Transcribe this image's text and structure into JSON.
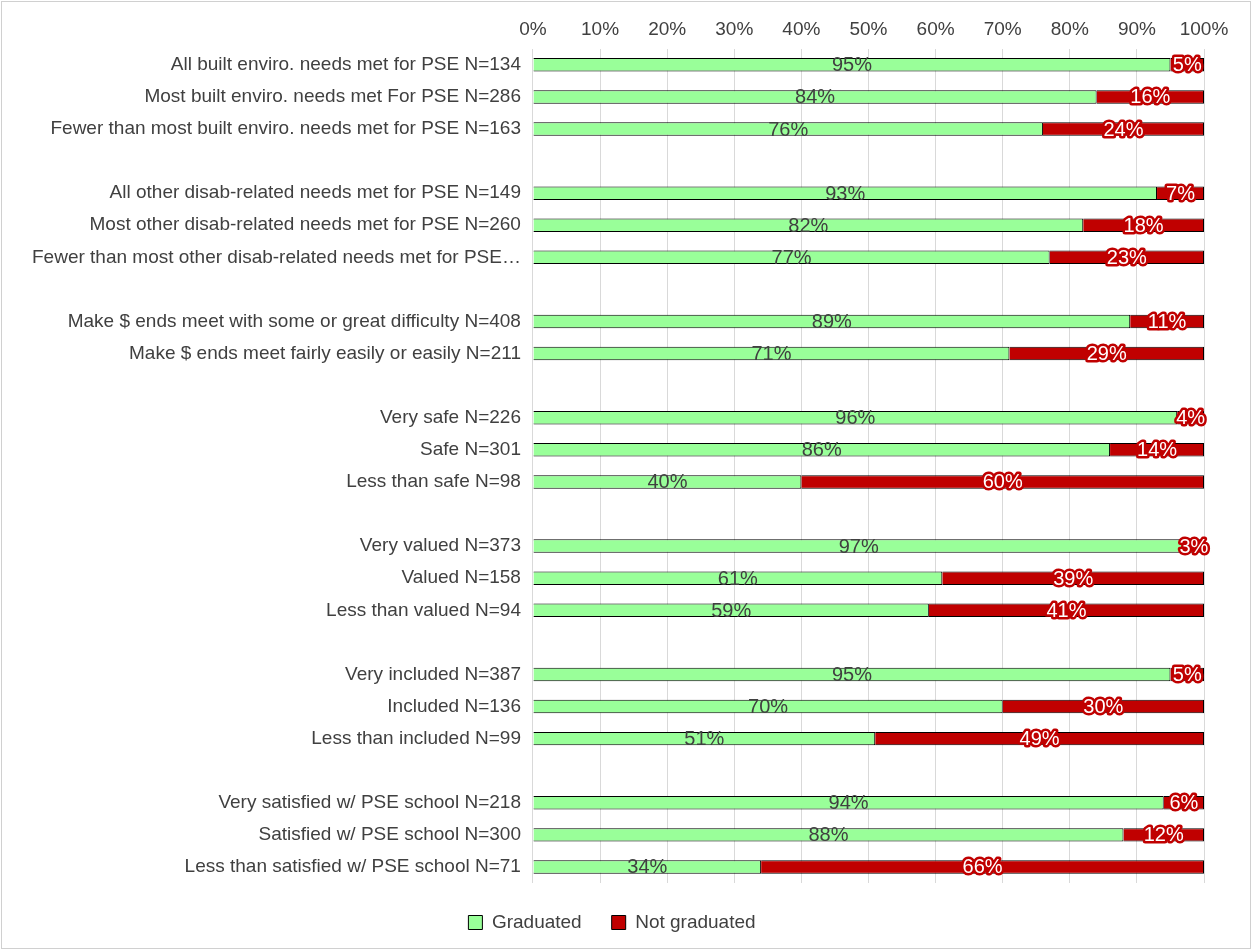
{
  "chart_data": {
    "type": "bar",
    "orientation": "horizontal",
    "stacked": true,
    "grid": "x",
    "legend": "bottom",
    "categories": [
      "All built enviro. needs met for PSE N=134",
      "Most built enviro. needs met For PSE N=286",
      "Fewer than most built enviro. needs met for PSE N=163",
      null,
      "All other disab-related needs met for PSE N=149",
      "Most other disab-related needs met for PSE N=260",
      "Fewer than most other disab-related needs met for PSE…",
      null,
      "Make $ ends meet with some or great difficulty N=408",
      "Make $ ends meet fairly easily or easily N=211",
      null,
      "Very safe N=226",
      "Safe N=301",
      "Less than safe N=98",
      null,
      "Very valued N=373",
      "Valued N=158",
      "Less than valued N=94",
      null,
      "Very included N=387",
      "Included N=136",
      "Less than included N=99",
      null,
      "Very satisfied w/ PSE school N=218",
      "Satisfied w/ PSE school N=300",
      "Less than satisfied w/ PSE school N=71"
    ],
    "series": [
      {
        "name": "Graduated",
        "color": "#99ff99",
        "values": [
          95,
          84,
          76,
          null,
          93,
          82,
          77,
          null,
          89,
          71,
          null,
          96,
          86,
          40,
          null,
          97,
          61,
          59,
          null,
          95,
          70,
          51,
          null,
          94,
          88,
          34
        ],
        "value_labels": [
          "95%",
          "84%",
          "76%",
          null,
          "93%",
          "82%",
          "77%",
          null,
          "89%",
          "71%",
          null,
          "96%",
          "86%",
          "40%",
          null,
          "97%",
          "61%",
          "59%",
          null,
          "95%",
          "70%",
          "51%",
          null,
          "94%",
          "88%",
          "34%"
        ]
      },
      {
        "name": "Not graduated",
        "color": "#c00000",
        "values": [
          5,
          16,
          24,
          null,
          7,
          18,
          23,
          null,
          11,
          29,
          null,
          4,
          14,
          60,
          null,
          3,
          39,
          41,
          null,
          5,
          30,
          49,
          null,
          6,
          12,
          66
        ],
        "value_labels": [
          "5%",
          "16%",
          "24%",
          null,
          "7%",
          "18%",
          "23%",
          null,
          "11%",
          "29%",
          null,
          "4%",
          "14%",
          "60%",
          null,
          "3%",
          "39%",
          "41%",
          null,
          "5%",
          "30%",
          "49%",
          null,
          "6%",
          "12%",
          "66%"
        ]
      }
    ],
    "xlim": [
      0,
      100
    ],
    "xticks": [
      {
        "value": 0,
        "label": "0%"
      },
      {
        "value": 10,
        "label": "10%"
      },
      {
        "value": 20,
        "label": "20%"
      },
      {
        "value": 30,
        "label": "30%"
      },
      {
        "value": 40,
        "label": "40%"
      },
      {
        "value": 50,
        "label": "50%"
      },
      {
        "value": 60,
        "label": "60%"
      },
      {
        "value": 70,
        "label": "70%"
      },
      {
        "value": 80,
        "label": "80%"
      },
      {
        "value": 90,
        "label": "90%"
      },
      {
        "value": 100,
        "label": "100%"
      }
    ]
  }
}
